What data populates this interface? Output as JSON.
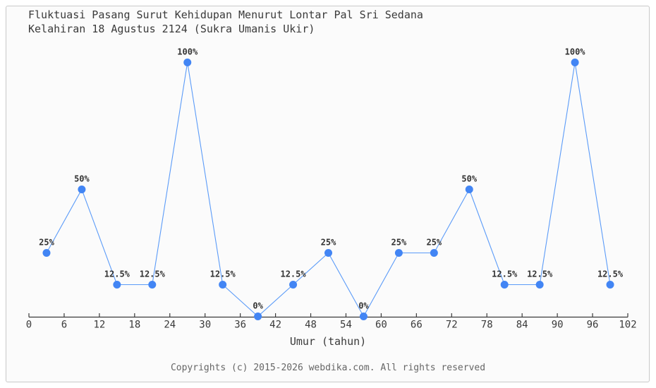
{
  "header": {
    "title_line1": "Fluktuasi Pasang Surut Kehidupan Menurut Lontar Pal Sri Sedana",
    "title_line2": "Kelahiran 18 Agustus 2124 (Sukra Umanis Ukir)"
  },
  "chart_data": {
    "type": "line",
    "x": [
      3,
      9,
      15,
      21,
      27,
      33,
      39,
      45,
      51,
      57,
      63,
      69,
      75,
      81,
      87,
      93,
      99
    ],
    "values": [
      25,
      50,
      12.5,
      12.5,
      100,
      12.5,
      0,
      12.5,
      25,
      0,
      25,
      25,
      50,
      12.5,
      12.5,
      100,
      12.5
    ],
    "point_labels": [
      "25%",
      "50%",
      "12.5%",
      "12.5%",
      "100%",
      "12.5%",
      "0%",
      "12.5%",
      "25%",
      "0%",
      "25%",
      "25%",
      "50%",
      "12.5%",
      "12.5%",
      "100%",
      "12.5%"
    ],
    "x_ticks": [
      0,
      6,
      12,
      18,
      24,
      30,
      36,
      42,
      48,
      54,
      60,
      66,
      72,
      78,
      84,
      90,
      96,
      102
    ],
    "xlabel": "Umur (tahun)",
    "xlim": [
      0,
      102
    ],
    "ylim": [
      0,
      100
    ],
    "grid": false,
    "legend": "none"
  },
  "footer": {
    "copyright": "Copyrights (c) 2015-2026 webdika.com. All rights reserved"
  },
  "colors": {
    "line": "#5b9bf8",
    "marker": "#4285f4",
    "axis": "#3a3a3a",
    "point_label": "#333333"
  }
}
